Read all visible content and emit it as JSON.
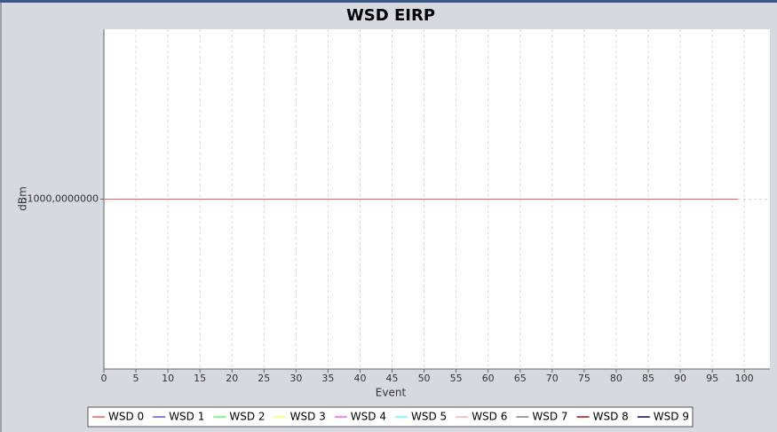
{
  "chart_data": {
    "type": "line",
    "title": "WSD EIRP",
    "x_label": "Event",
    "y_label": "dBm",
    "x": [
      0,
      99
    ],
    "series": [
      {
        "name": "WSD 0",
        "color": "#ff5555",
        "values": [
          -1000,
          -1000
        ]
      },
      {
        "name": "WSD 1",
        "color": "#5555ff",
        "values": [
          null,
          null
        ]
      },
      {
        "name": "WSD 2",
        "color": "#55ff55",
        "values": [
          null,
          null
        ]
      },
      {
        "name": "WSD 3",
        "color": "#ffff55",
        "values": [
          null,
          null
        ]
      },
      {
        "name": "WSD 4",
        "color": "#ff55ff",
        "values": [
          null,
          null
        ]
      },
      {
        "name": "WSD 5",
        "color": "#55ffff",
        "values": [
          null,
          null
        ]
      },
      {
        "name": "WSD 6",
        "color": "#ffafaf",
        "values": [
          null,
          null
        ]
      },
      {
        "name": "WSD 7",
        "color": "#808080",
        "values": [
          null,
          null
        ]
      },
      {
        "name": "WSD 8",
        "color": "#c00000",
        "values": [
          null,
          null
        ]
      },
      {
        "name": "WSD 9",
        "color": "#000080",
        "values": [
          null,
          null
        ]
      }
    ],
    "xlim": [
      0,
      104
    ],
    "xticks": [
      0,
      5,
      10,
      15,
      20,
      25,
      30,
      35,
      40,
      45,
      50,
      55,
      60,
      65,
      70,
      75,
      80,
      85,
      90,
      95,
      100
    ],
    "ylim": [
      -1001,
      -999
    ],
    "yticks": [
      {
        "value": -1000,
        "label": "-1000,0000000"
      }
    ],
    "grid": true,
    "legend": "bottom"
  }
}
